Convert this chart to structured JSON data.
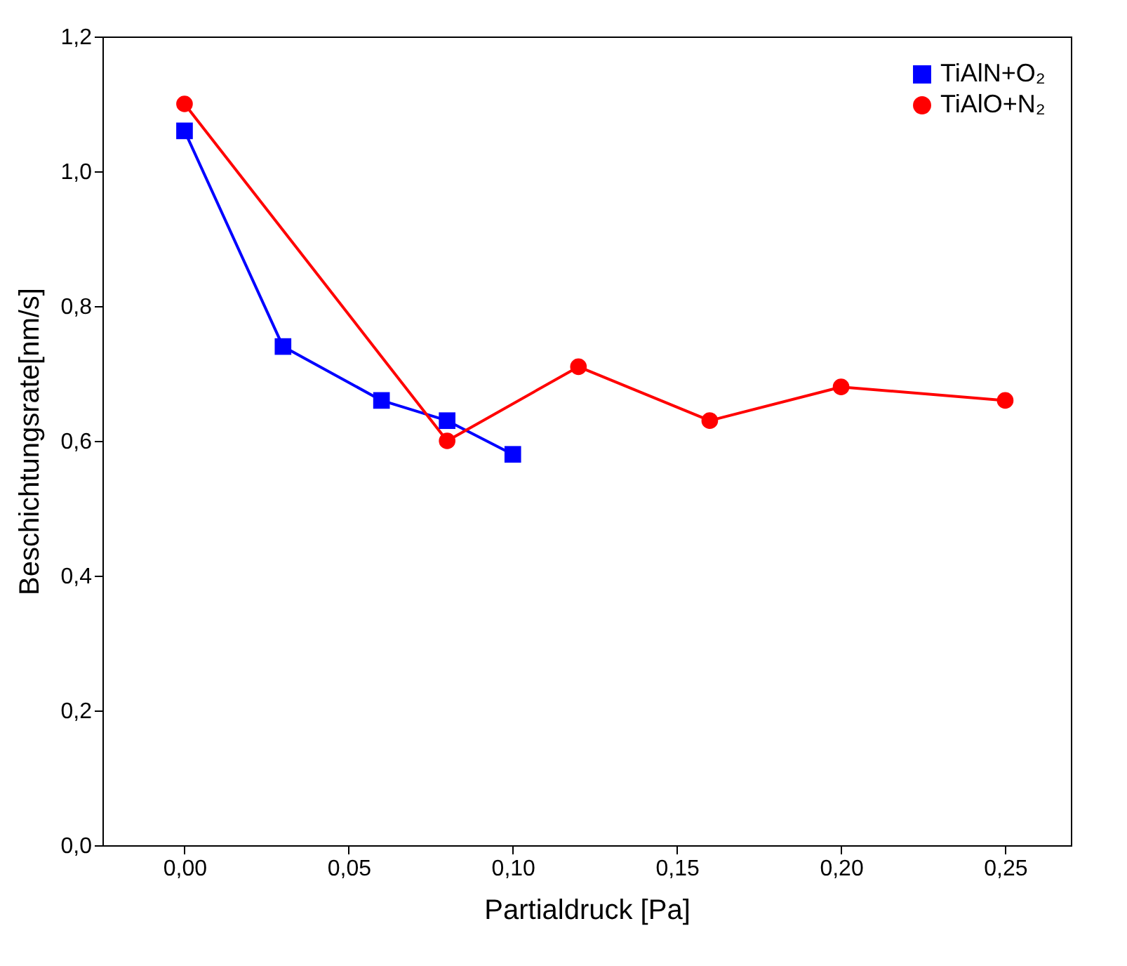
{
  "chart_data": {
    "type": "line",
    "xlabel": "Partialdruck [Pa]",
    "ylabel": "Beschichtungsrate[nm/s]",
    "xlim": [
      -0.025,
      0.27
    ],
    "xticks": [
      {
        "value": 0,
        "label": "0,00"
      },
      {
        "value": 0.05,
        "label": "0,05"
      },
      {
        "value": 0.1,
        "label": "0,10"
      },
      {
        "value": 0.15,
        "label": "0,15"
      },
      {
        "value": 0.2,
        "label": "0,20"
      },
      {
        "value": 0.25,
        "label": "0,25"
      }
    ],
    "ylim": [
      0,
      1.2
    ],
    "yticks": [
      {
        "value": 0,
        "label": "0,0"
      },
      {
        "value": 0.2,
        "label": "0,2"
      },
      {
        "value": 0.4,
        "label": "0,4"
      },
      {
        "value": 0.6,
        "label": "0,6"
      },
      {
        "value": 0.8,
        "label": "0,8"
      },
      {
        "value": 1.0,
        "label": "1,0"
      },
      {
        "value": 1.2,
        "label": "1,2"
      }
    ],
    "grid": false,
    "legend": "top right",
    "line_style": "solid",
    "series": [
      {
        "name": "TiAlN+O₂",
        "color": "#0000ff",
        "marker": "square",
        "x": [
          0,
          0.03,
          0.06,
          0.08,
          0.1
        ],
        "values": [
          1.06,
          0.74,
          0.66,
          0.63,
          0.58
        ]
      },
      {
        "name": "TiAlO+N₂",
        "color": "#ff0000",
        "marker": "circle",
        "x": [
          0,
          0.08,
          0.12,
          0.16,
          0.2,
          0.25
        ],
        "values": [
          1.1,
          0.6,
          0.71,
          0.63,
          0.68,
          0.66
        ]
      }
    ]
  }
}
